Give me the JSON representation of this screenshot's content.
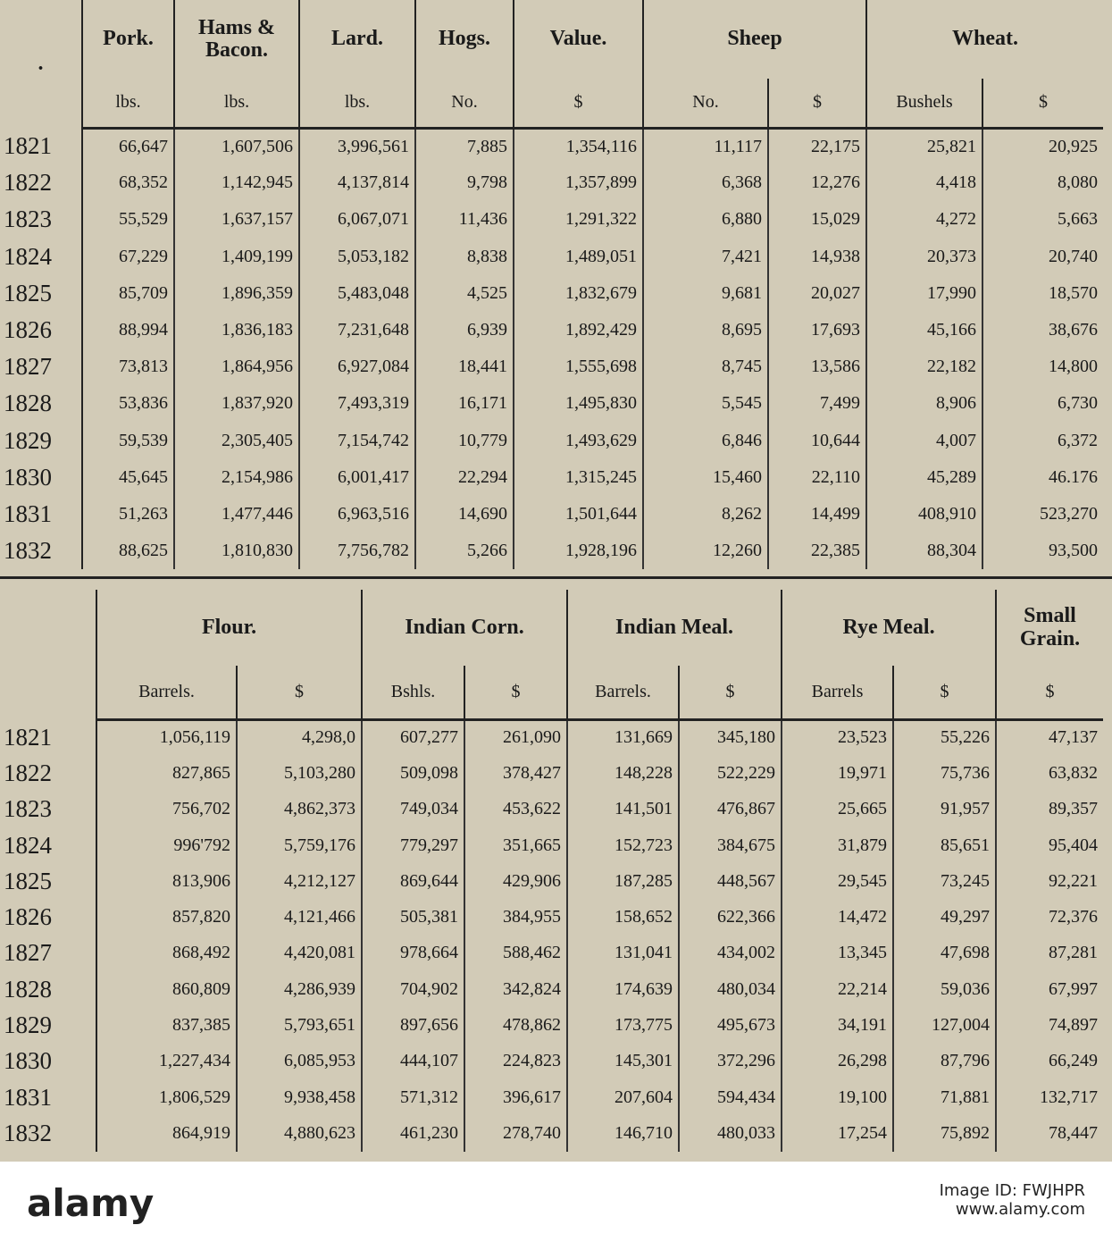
{
  "top_table": {
    "marker": ".",
    "groups": [
      {
        "label": "Pork.",
        "units": [
          "lbs."
        ]
      },
      {
        "label": "Hams & Bacon.",
        "units": [
          "lbs."
        ]
      },
      {
        "label": "Lard.",
        "units": [
          "lbs."
        ]
      },
      {
        "label": "Hogs.",
        "units": [
          "No."
        ]
      },
      {
        "label": "Value.",
        "units": [
          "$"
        ]
      },
      {
        "label": "Sheep",
        "units": [
          "No.",
          "$"
        ]
      },
      {
        "label": "Wheat.",
        "units": [
          "Bushels",
          "$"
        ]
      }
    ],
    "rows": [
      [
        "1821",
        "66,647",
        "1,607,506",
        "3,996,561",
        "7,885",
        "1,354,116",
        "11,117",
        "22,175",
        "25,821",
        "20,925"
      ],
      [
        "1822",
        "68,352",
        "1,142,945",
        "4,137,814",
        "9,798",
        "1,357,899",
        "6,368",
        "12,276",
        "4,418",
        "8,080"
      ],
      [
        "1823",
        "55,529",
        "1,637,157",
        "6,067,071",
        "11,436",
        "1,291,322",
        "6,880",
        "15,029",
        "4,272",
        "5,663"
      ],
      [
        "1824",
        "67,229",
        "1,409,199",
        "5,053,182",
        "8,838",
        "1,489,051",
        "7,421",
        "14,938",
        "20,373",
        "20,740"
      ],
      [
        "1825",
        "85,709",
        "1,896,359",
        "5,483,048",
        "4,525",
        "1,832,679",
        "9,681",
        "20,027",
        "17,990",
        "18,570"
      ],
      [
        "1826",
        "88,994",
        "1,836,183",
        "7,231,648",
        "6,939",
        "1,892,429",
        "8,695",
        "17,693",
        "45,166",
        "38,676"
      ],
      [
        "1827",
        "73,813",
        "1,864,956",
        "6,927,084",
        "18,441",
        "1,555,698",
        "8,745",
        "13,586",
        "22,182",
        "14,800"
      ],
      [
        "1828",
        "53,836",
        "1,837,920",
        "7,493,319",
        "16,171",
        "1,495,830",
        "5,545",
        "7,499",
        "8,906",
        "6,730"
      ],
      [
        "1829",
        "59,539",
        "2,305,405",
        "7,154,742",
        "10,779",
        "1,493,629",
        "6,846",
        "10,644",
        "4,007",
        "6,372"
      ],
      [
        "1830",
        "45,645",
        "2,154,986",
        "6,001,417",
        "22,294",
        "1,315,245",
        "15,460",
        "22,110",
        "45,289",
        "46.176"
      ],
      [
        "1831",
        "51,263",
        "1,477,446",
        "6,963,516",
        "14,690",
        "1,501,644",
        "8,262",
        "14,499",
        "408,910",
        "523,270"
      ],
      [
        "1832",
        "88,625",
        "1,810,830",
        "7,756,782",
        "5,266",
        "1,928,196",
        "12,260",
        "22,385",
        "88,304",
        "93,500"
      ]
    ]
  },
  "bottom_table": {
    "groups": [
      {
        "label": "Flour.",
        "units": [
          "Barrels.",
          "$"
        ]
      },
      {
        "label": "Indian Corn.",
        "units": [
          "Bshls.",
          "$"
        ]
      },
      {
        "label": "Indian Meal.",
        "units": [
          "Barrels.",
          "$"
        ]
      },
      {
        "label": "Rye Meal.",
        "units": [
          "Barrels",
          "$"
        ]
      },
      {
        "label": "Small Grain.",
        "units": [
          "$"
        ]
      }
    ],
    "rows": [
      [
        "1821",
        "1,056,119",
        "4,298,0",
        "607,277",
        "261,090",
        "131,669",
        "345,180",
        "23,523",
        "55,226",
        "47,137"
      ],
      [
        "1822",
        "827,865",
        "5,103,280",
        "509,098",
        "378,427",
        "148,228",
        "522,229",
        "19,971",
        "75,736",
        "63,832"
      ],
      [
        "1823",
        "756,702",
        "4,862,373",
        "749,034",
        "453,622",
        "141,501",
        "476,867",
        "25,665",
        "91,957",
        "89,357"
      ],
      [
        "1824",
        "996'792",
        "5,759,176",
        "779,297",
        "351,665",
        "152,723",
        "384,675",
        "31,879",
        "85,651",
        "95,404"
      ],
      [
        "1825",
        "813,906",
        "4,212,127",
        "869,644",
        "429,906",
        "187,285",
        "448,567",
        "29,545",
        "73,245",
        "92,221"
      ],
      [
        "1826",
        "857,820",
        "4,121,466",
        "505,381",
        "384,955",
        "158,652",
        "622,366",
        "14,472",
        "49,297",
        "72,376"
      ],
      [
        "1827",
        "868,492",
        "4,420,081",
        "978,664",
        "588,462",
        "131,041",
        "434,002",
        "13,345",
        "47,698",
        "87,281"
      ],
      [
        "1828",
        "860,809",
        "4,286,939",
        "704,902",
        "342,824",
        "174,639",
        "480,034",
        "22,214",
        "59,036",
        "67,997"
      ],
      [
        "1829",
        "837,385",
        "5,793,651",
        "897,656",
        "478,862",
        "173,775",
        "495,673",
        "34,191",
        "127,004",
        "74,897"
      ],
      [
        "1830",
        "1,227,434",
        "6,085,953",
        "444,107",
        "224,823",
        "145,301",
        "372,296",
        "26,298",
        "87,796",
        "66,249"
      ],
      [
        "1831",
        "1,806,529",
        "9,938,458",
        "571,312",
        "396,617",
        "207,604",
        "594,434",
        "19,100",
        "71,881",
        "132,717"
      ],
      [
        "1832",
        "864,919",
        "4,880,623",
        "461,230",
        "278,740",
        "146,710",
        "480,033",
        "17,254",
        "75,892",
        "78,447"
      ]
    ]
  },
  "watermark": {
    "logo": "alamy",
    "image_id": "Image ID: FWJHPR",
    "site": "www.alamy.com"
  }
}
